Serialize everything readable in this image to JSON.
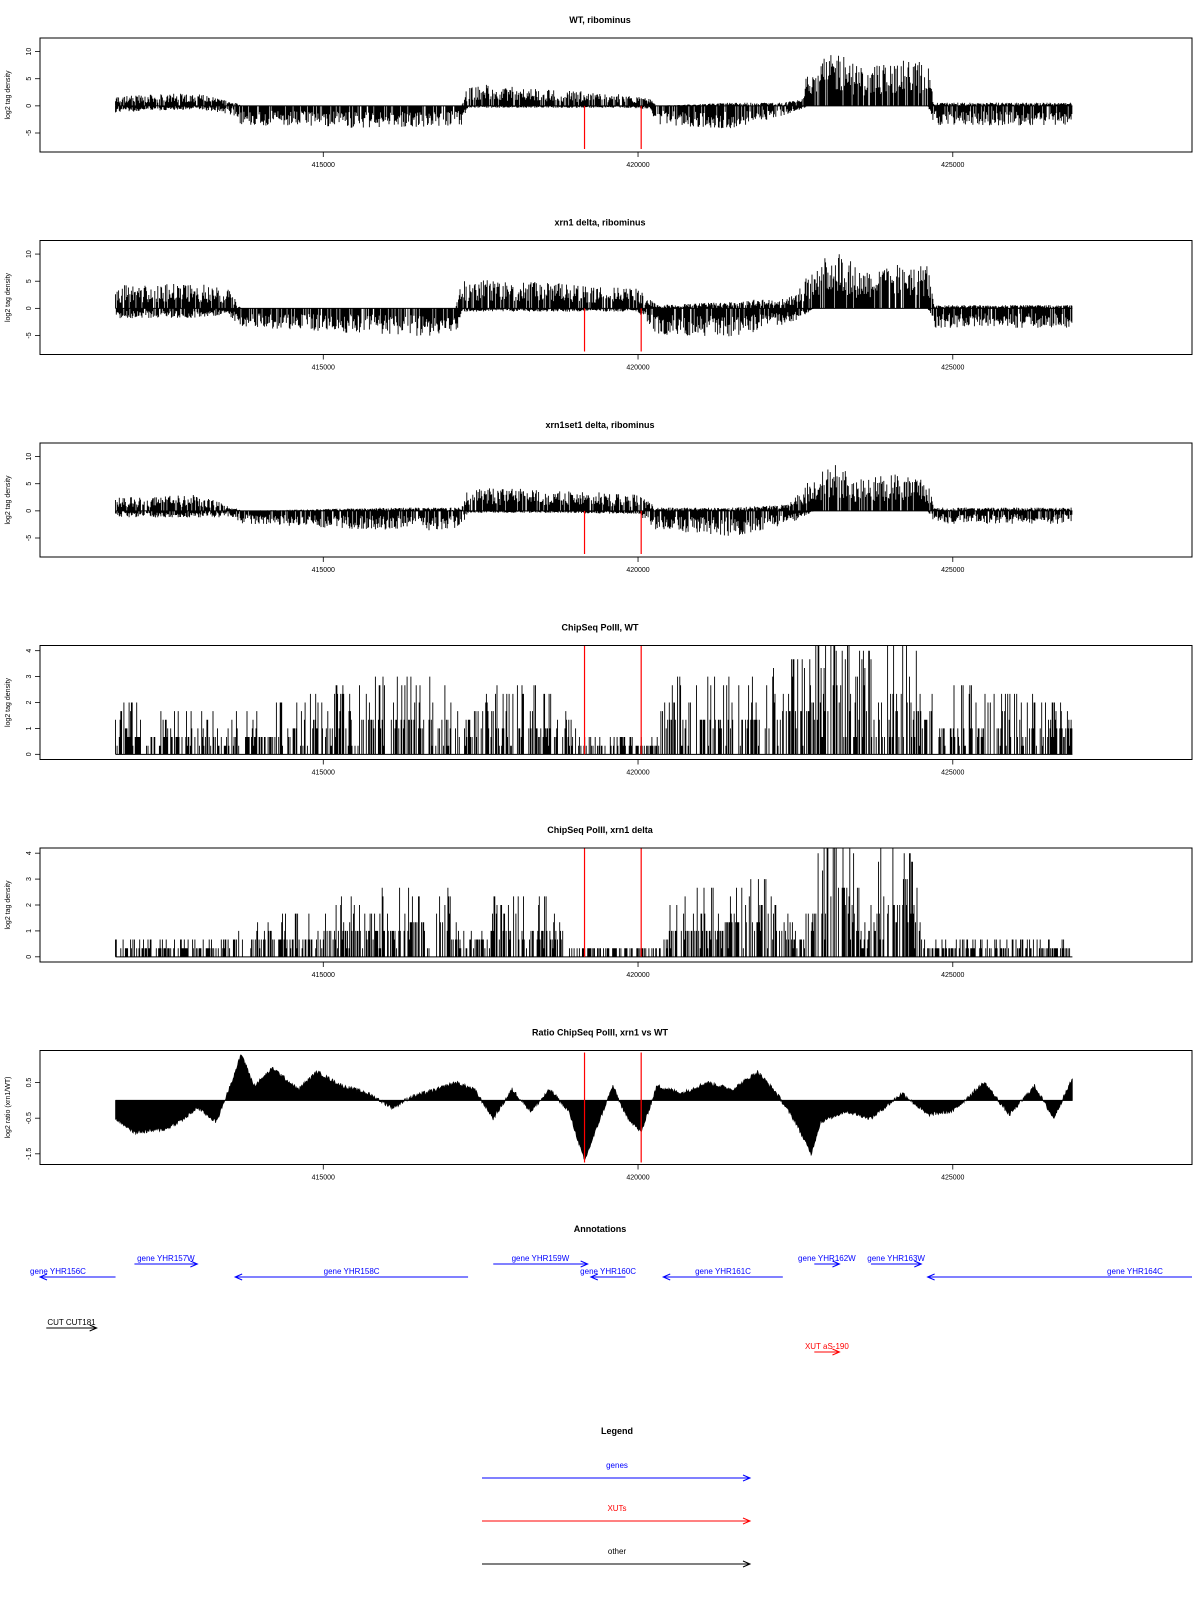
{
  "xaxis": {
    "xlim": [
      410500,
      428800
    ],
    "ticks": [
      415000,
      420000,
      425000
    ],
    "tick_labels": [
      "415000",
      "420000",
      "425000"
    ]
  },
  "markers": {
    "color": "#ff0000",
    "positions": [
      419150,
      420050
    ]
  },
  "colors": {
    "bars": "#000000",
    "genes": "#0000ff",
    "xuts": "#ff0000",
    "other": "#000000"
  },
  "chart_data": [
    {
      "type": "bar",
      "title": "WT, ribominus",
      "ylabel": "log2 tag density",
      "ylim": [
        -8.5,
        12.5
      ],
      "yticks": [
        -5,
        0,
        5,
        10
      ],
      "yticklabels": [
        "-5",
        "0",
        "5",
        "10"
      ],
      "data_range": [
        411700,
        426900
      ],
      "profile": [
        [
          411700,
          1.5,
          -1.0
        ],
        [
          413000,
          2.0,
          -0.5
        ],
        [
          413600,
          0.5,
          -1.5
        ],
        [
          413700,
          0,
          -3.0
        ],
        [
          416000,
          0,
          -3.5
        ],
        [
          417200,
          0,
          -3.0
        ],
        [
          417300,
          3.5,
          -0.3
        ],
        [
          418500,
          2.5,
          -0.3
        ],
        [
          419700,
          2.0,
          -0.3
        ],
        [
          420200,
          1.0,
          -0.5
        ],
        [
          420300,
          0,
          -3.0
        ],
        [
          421500,
          0.5,
          -3.5
        ],
        [
          422300,
          0.5,
          -1.5
        ],
        [
          422600,
          1.0,
          -0.5
        ],
        [
          422700,
          6.0,
          0
        ],
        [
          423200,
          8.5,
          0
        ],
        [
          423500,
          6.0,
          0
        ],
        [
          424200,
          7.0,
          0
        ],
        [
          424600,
          7.0,
          0
        ],
        [
          424700,
          0.5,
          -3.0
        ],
        [
          426900,
          0.5,
          -3.0
        ]
      ]
    },
    {
      "type": "bar",
      "title": "xrn1 delta, ribominus",
      "ylabel": "log2 tag density",
      "ylim": [
        -8.5,
        12.5
      ],
      "yticks": [
        -5,
        0,
        5,
        10
      ],
      "yticklabels": [
        "-5",
        "0",
        "5",
        "10"
      ],
      "data_range": [
        411700,
        426900
      ],
      "profile": [
        [
          411700,
          3.5,
          -1.5
        ],
        [
          413000,
          4.0,
          -1.5
        ],
        [
          413500,
          3.0,
          -1.0
        ],
        [
          413700,
          0,
          -3.0
        ],
        [
          416000,
          0,
          -4.0
        ],
        [
          417100,
          0,
          -4.5
        ],
        [
          417200,
          4.5,
          -0.5
        ],
        [
          418500,
          4.0,
          -0.5
        ],
        [
          420000,
          3.0,
          -0.5
        ],
        [
          420300,
          0.5,
          -4.0
        ],
        [
          421500,
          1.0,
          -4.5
        ],
        [
          422500,
          2.0,
          -2.0
        ],
        [
          422800,
          7.0,
          0
        ],
        [
          423200,
          9.0,
          0
        ],
        [
          423500,
          6.0,
          0
        ],
        [
          424200,
          7.0,
          0
        ],
        [
          424600,
          7.0,
          0
        ],
        [
          424700,
          0.5,
          -3.0
        ],
        [
          426900,
          0.5,
          -3.0
        ]
      ]
    },
    {
      "type": "bar",
      "title": "xrn1set1 delta, ribominus",
      "ylabel": "log2 tag density",
      "ylim": [
        -8.5,
        12.5
      ],
      "yticks": [
        -5,
        0,
        5,
        10
      ],
      "yticklabels": [
        "-5",
        "0",
        "5",
        "10"
      ],
      "data_range": [
        411700,
        426900
      ],
      "profile": [
        [
          411700,
          2.0,
          -1.0
        ],
        [
          413000,
          2.5,
          -1.0
        ],
        [
          413600,
          0.5,
          -1.0
        ],
        [
          413700,
          0,
          -2.0
        ],
        [
          416000,
          0.5,
          -3.0
        ],
        [
          417200,
          0.5,
          -3.0
        ],
        [
          417300,
          3.5,
          -0.3
        ],
        [
          418500,
          3.5,
          -0.3
        ],
        [
          420000,
          2.5,
          -0.5
        ],
        [
          420300,
          0.5,
          -3.0
        ],
        [
          421500,
          0.5,
          -4.0
        ],
        [
          422400,
          1.0,
          -2.0
        ],
        [
          422800,
          6.0,
          0
        ],
        [
          423200,
          7.5,
          0
        ],
        [
          423500,
          5.0,
          0
        ],
        [
          424200,
          6.0,
          0
        ],
        [
          424600,
          5.0,
          0
        ],
        [
          424700,
          0.5,
          -2.0
        ],
        [
          426900,
          0.5,
          -2.0
        ]
      ]
    },
    {
      "type": "bar",
      "title": "ChipSeq PolII, WT",
      "ylabel": "log2 tag density",
      "ylim": [
        -0.2,
        4.2
      ],
      "yticks": [
        0,
        1,
        2,
        3,
        4
      ],
      "yticklabels": [
        "0",
        "1",
        "2",
        "3",
        "4"
      ],
      "data_range": [
        411700,
        426900
      ],
      "profile": [
        [
          411700,
          1.0
        ],
        [
          413600,
          0.8
        ],
        [
          414500,
          1.0
        ],
        [
          415500,
          1.4
        ],
        [
          416500,
          1.6
        ],
        [
          417000,
          1.6
        ],
        [
          417200,
          0.6
        ],
        [
          417700,
          1.3
        ],
        [
          418500,
          1.3
        ],
        [
          419100,
          0.4
        ],
        [
          420300,
          0.4
        ],
        [
          420500,
          1.6
        ],
        [
          422000,
          1.6
        ],
        [
          422700,
          2.0
        ],
        [
          423200,
          3.3
        ],
        [
          423600,
          2.0
        ],
        [
          424200,
          2.8
        ],
        [
          424600,
          1.4
        ],
        [
          426900,
          1.0
        ]
      ]
    },
    {
      "type": "bar",
      "title": "ChipSeq PolII, xrn1 delta",
      "ylabel": "log2 tag density",
      "ylim": [
        -0.2,
        4.2
      ],
      "yticks": [
        0,
        1,
        2,
        3,
        4
      ],
      "yticklabels": [
        "0",
        "1",
        "2",
        "3",
        "4"
      ],
      "data_range": [
        411700,
        426900
      ],
      "profile": [
        [
          411700,
          0.4
        ],
        [
          413600,
          0.4
        ],
        [
          414000,
          0.7
        ],
        [
          415500,
          1.2
        ],
        [
          416500,
          1.4
        ],
        [
          416800,
          2.0
        ],
        [
          417200,
          0.4
        ],
        [
          417700,
          1.2
        ],
        [
          418500,
          1.2
        ],
        [
          419000,
          0.2
        ],
        [
          420400,
          0.2
        ],
        [
          420500,
          1.2
        ],
        [
          422000,
          1.5
        ],
        [
          422600,
          0.6
        ],
        [
          422900,
          2.6
        ],
        [
          423300,
          3.2
        ],
        [
          423600,
          0.6
        ],
        [
          423900,
          2.6
        ],
        [
          424300,
          2.2
        ],
        [
          424600,
          0.4
        ],
        [
          426900,
          0.4
        ]
      ]
    },
    {
      "type": "area",
      "title": "Ratio ChipSeq PolII, xrn1 vs WT",
      "ylabel": "log2 ratio (xrn1/WT)",
      "ylim": [
        -1.8,
        1.4
      ],
      "yticks": [
        -1.5,
        -0.5,
        0.5
      ],
      "yticklabels": [
        "-1.5",
        "-0.5",
        "0.5"
      ],
      "baseline": 0,
      "data_range": [
        411700,
        426900
      ],
      "profile": [
        [
          411700,
          -0.5
        ],
        [
          412000,
          -0.9
        ],
        [
          412500,
          -0.8
        ],
        [
          412800,
          -0.5
        ],
        [
          413000,
          -0.2
        ],
        [
          413300,
          -0.6
        ],
        [
          413500,
          0.3
        ],
        [
          413700,
          1.3
        ],
        [
          413900,
          0.4
        ],
        [
          414200,
          0.9
        ],
        [
          414600,
          0.3
        ],
        [
          414900,
          0.8
        ],
        [
          415300,
          0.4
        ],
        [
          415700,
          0.2
        ],
        [
          416100,
          -0.2
        ],
        [
          416400,
          0.1
        ],
        [
          416800,
          0.3
        ],
        [
          417100,
          0.5
        ],
        [
          417400,
          0.3
        ],
        [
          417700,
          -0.5
        ],
        [
          418000,
          0.3
        ],
        [
          418300,
          -0.3
        ],
        [
          418600,
          0.3
        ],
        [
          418900,
          -0.3
        ],
        [
          419150,
          -1.7
        ],
        [
          419400,
          -0.5
        ],
        [
          419600,
          0.4
        ],
        [
          419800,
          -0.4
        ],
        [
          420050,
          -0.9
        ],
        [
          420300,
          0.4
        ],
        [
          420700,
          0.2
        ],
        [
          421100,
          0.5
        ],
        [
          421500,
          0.3
        ],
        [
          421900,
          0.8
        ],
        [
          422200,
          0.2
        ],
        [
          422500,
          -0.6
        ],
        [
          422750,
          -1.5
        ],
        [
          422900,
          -0.6
        ],
        [
          423300,
          -0.3
        ],
        [
          423700,
          -0.5
        ],
        [
          424200,
          0.2
        ],
        [
          424600,
          -0.4
        ],
        [
          425000,
          -0.3
        ],
        [
          425500,
          0.5
        ],
        [
          425900,
          -0.4
        ],
        [
          426300,
          0.4
        ],
        [
          426600,
          -0.5
        ],
        [
          426900,
          0.6
        ]
      ]
    }
  ],
  "annotations": {
    "title": "Annotations",
    "features": [
      {
        "label": "gene YHR156C",
        "start": 410500,
        "end": 411700,
        "strand": "-",
        "row": 0,
        "type": "gene"
      },
      {
        "label": "gene YHR157W",
        "start": 412000,
        "end": 413000,
        "strand": "+",
        "row": 1,
        "type": "gene"
      },
      {
        "label": "gene YHR158C",
        "start": 413600,
        "end": 417300,
        "strand": "-",
        "row": 0,
        "type": "gene"
      },
      {
        "label": "gene YHR159W",
        "start": 417700,
        "end": 419200,
        "strand": "+",
        "row": 1,
        "type": "gene"
      },
      {
        "label": "gene YHR160C",
        "start": 419250,
        "end": 419800,
        "strand": "-",
        "row": 0,
        "type": "gene"
      },
      {
        "label": "gene YHR161C",
        "start": 420400,
        "end": 422300,
        "strand": "-",
        "row": 0,
        "type": "gene"
      },
      {
        "label": "gene YHR162W",
        "start": 422800,
        "end": 423200,
        "strand": "+",
        "row": 1,
        "type": "gene"
      },
      {
        "label": "gene YHR163W",
        "start": 423700,
        "end": 424500,
        "strand": "+",
        "row": 1,
        "type": "gene"
      },
      {
        "label": "gene YHR164C",
        "start": 424600,
        "end": 428800,
        "strand": "-",
        "row": 0,
        "type": "gene"
      },
      {
        "label": "CUT CUT181",
        "start": 410600,
        "end": 411400,
        "strand": "+",
        "row": 2,
        "type": "other"
      },
      {
        "label": "XUT aS-190",
        "start": 422800,
        "end": 423200,
        "strand": "+",
        "row": 3,
        "type": "xut"
      }
    ]
  },
  "legend": {
    "title": "Legend",
    "items": [
      {
        "label": "genes",
        "color": "#0000ff"
      },
      {
        "label": "XUTs",
        "color": "#ff0000"
      },
      {
        "label": "other",
        "color": "#000000"
      }
    ]
  }
}
